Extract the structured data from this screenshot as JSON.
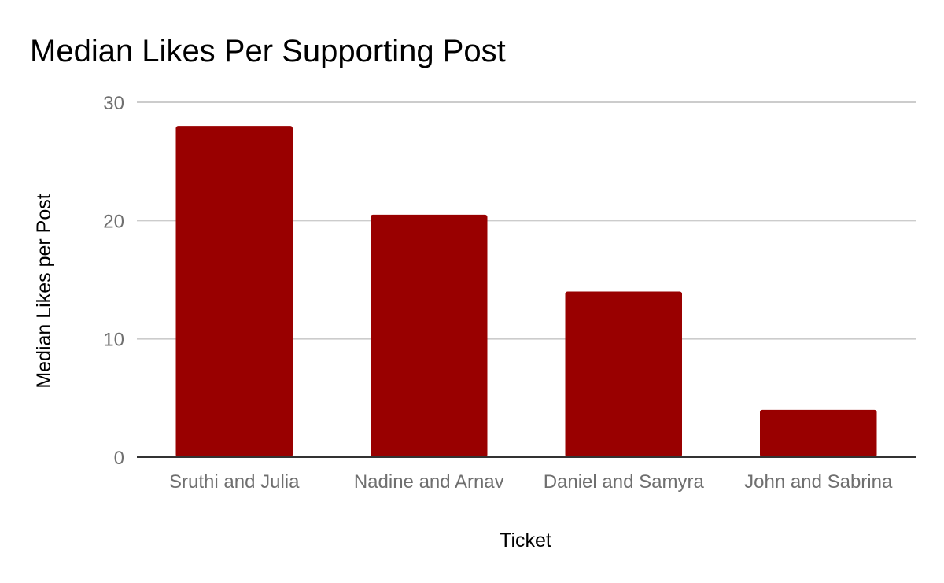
{
  "chart_data": {
    "type": "bar",
    "title": "Median Likes Per Supporting Post",
    "xlabel": "Ticket",
    "ylabel": "Median Likes per Post",
    "categories": [
      "Sruthi and Julia",
      "Nadine and Arnav",
      "Daniel and Samyra",
      "John and Sabrina"
    ],
    "values": [
      28,
      20.5,
      14,
      4
    ],
    "yticks": [
      0,
      10,
      20,
      30
    ],
    "ylim": [
      0,
      30
    ],
    "grid": true,
    "legend": "none",
    "colors": {
      "bar": "#990000",
      "grid": "#cccccc",
      "baseline": "#333333"
    }
  }
}
